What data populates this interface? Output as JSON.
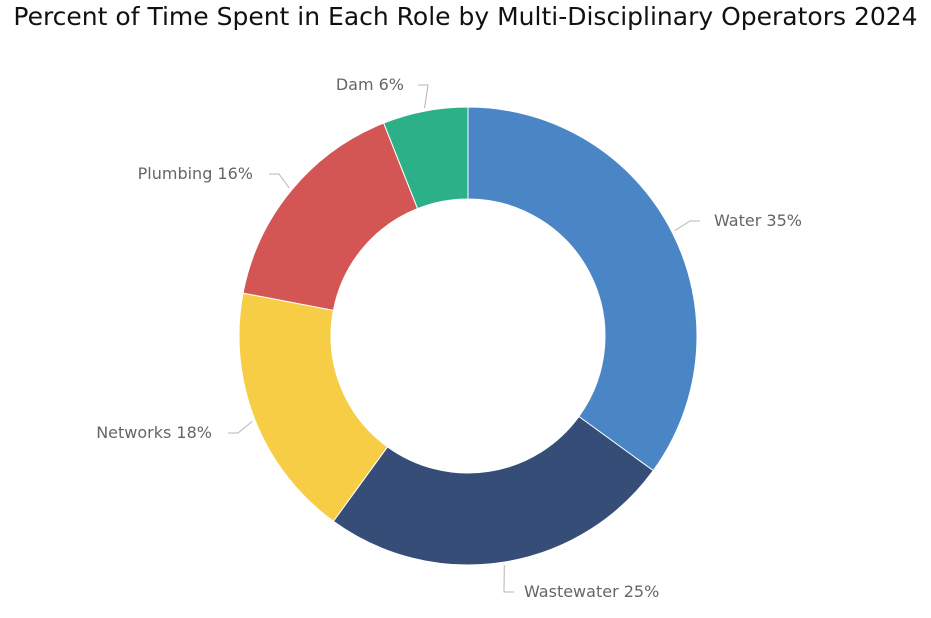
{
  "chart_data": {
    "type": "pie",
    "title": "Percent of Time Spent in Each Role by Multi-Disciplinary Operators 2024",
    "unit": "%",
    "categories": [
      "Water",
      "Wastewater",
      "Networks",
      "Plumbing",
      "Dam"
    ],
    "values": [
      35,
      25,
      18,
      16,
      6
    ],
    "labels": [
      "Water 35%",
      "Wastewater 25%",
      "Networks 18%",
      "Plumbing 16%",
      "Dam 6%"
    ],
    "colors": [
      "#4a86c6",
      "#364d78",
      "#f6cd45",
      "#d35654",
      "#2bb087"
    ],
    "donut": true,
    "start": "top",
    "direction": "clockwise",
    "legend": "none"
  }
}
